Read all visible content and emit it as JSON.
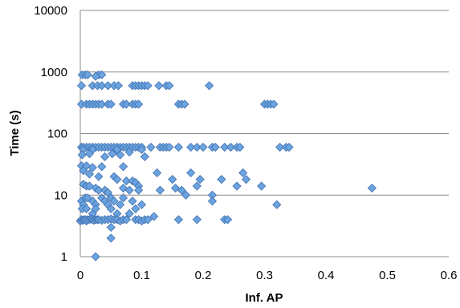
{
  "chart_data": {
    "type": "scatter",
    "title": "",
    "xlabel": "Inf. AP",
    "ylabel": "Time (s)",
    "xlim": [
      0,
      0.6
    ],
    "ylim": [
      1,
      10000
    ],
    "yscale": "log",
    "grid": {
      "horizontal": true,
      "vertical": false
    },
    "legend": "none",
    "x_ticks": [
      "0",
      "0.1",
      "0.2",
      "0.3",
      "0.4",
      "0.5",
      "0.6"
    ],
    "y_ticks": [
      "1",
      "10",
      "100",
      "1000",
      "10000"
    ],
    "marker": "diamond",
    "colors": {
      "marker_fill": "#6aa3df",
      "marker_edge": "#3f6fae",
      "grid": "#8c8c8c"
    },
    "series": [
      {
        "points": [
          [
            0.003,
            900
          ],
          [
            0.008,
            900
          ],
          [
            0.012,
            900
          ],
          [
            0.03,
            900
          ],
          [
            0.035,
            900
          ],
          [
            0.025,
            850
          ],
          [
            0.002,
            600
          ],
          [
            0.02,
            600
          ],
          [
            0.028,
            600
          ],
          [
            0.035,
            600
          ],
          [
            0.045,
            600
          ],
          [
            0.055,
            600
          ],
          [
            0.062,
            600
          ],
          [
            0.085,
            600
          ],
          [
            0.09,
            600
          ],
          [
            0.095,
            600
          ],
          [
            0.1,
            600
          ],
          [
            0.105,
            600
          ],
          [
            0.11,
            600
          ],
          [
            0.128,
            600
          ],
          [
            0.14,
            600
          ],
          [
            0.145,
            600
          ],
          [
            0.21,
            600
          ],
          [
            0.002,
            300
          ],
          [
            0.01,
            300
          ],
          [
            0.015,
            300
          ],
          [
            0.02,
            300
          ],
          [
            0.025,
            300
          ],
          [
            0.03,
            300
          ],
          [
            0.035,
            300
          ],
          [
            0.045,
            300
          ],
          [
            0.05,
            300
          ],
          [
            0.07,
            300
          ],
          [
            0.075,
            300
          ],
          [
            0.085,
            300
          ],
          [
            0.09,
            300
          ],
          [
            0.095,
            300
          ],
          [
            0.16,
            300
          ],
          [
            0.165,
            300
          ],
          [
            0.17,
            300
          ],
          [
            0.3,
            300
          ],
          [
            0.305,
            300
          ],
          [
            0.31,
            300
          ],
          [
            0.315,
            300
          ],
          [
            0.002,
            60
          ],
          [
            0.005,
            60
          ],
          [
            0.01,
            60
          ],
          [
            0.015,
            60
          ],
          [
            0.02,
            60
          ],
          [
            0.025,
            60
          ],
          [
            0.03,
            60
          ],
          [
            0.035,
            60
          ],
          [
            0.04,
            60
          ],
          [
            0.045,
            60
          ],
          [
            0.05,
            60
          ],
          [
            0.055,
            60
          ],
          [
            0.06,
            60
          ],
          [
            0.065,
            60
          ],
          [
            0.07,
            60
          ],
          [
            0.075,
            60
          ],
          [
            0.08,
            60
          ],
          [
            0.085,
            60
          ],
          [
            0.09,
            60
          ],
          [
            0.095,
            60
          ],
          [
            0.1,
            60
          ],
          [
            0.115,
            60
          ],
          [
            0.13,
            60
          ],
          [
            0.135,
            60
          ],
          [
            0.14,
            60
          ],
          [
            0.145,
            60
          ],
          [
            0.16,
            60
          ],
          [
            0.18,
            60
          ],
          [
            0.19,
            60
          ],
          [
            0.2,
            60
          ],
          [
            0.215,
            60
          ],
          [
            0.22,
            60
          ],
          [
            0.235,
            60
          ],
          [
            0.245,
            60
          ],
          [
            0.255,
            60
          ],
          [
            0.26,
            60
          ],
          [
            0.325,
            60
          ],
          [
            0.335,
            60
          ],
          [
            0.34,
            60
          ],
          [
            0.005,
            55
          ],
          [
            0.02,
            55
          ],
          [
            0.06,
            55
          ],
          [
            0.1,
            55
          ],
          [
            0.003,
            45
          ],
          [
            0.015,
            47
          ],
          [
            0.04,
            42
          ],
          [
            0.052,
            47
          ],
          [
            0.065,
            45
          ],
          [
            0.08,
            50
          ],
          [
            0.105,
            42
          ],
          [
            0.002,
            30
          ],
          [
            0.01,
            30
          ],
          [
            0.02,
            28
          ],
          [
            0.035,
            29
          ],
          [
            0.07,
            29
          ],
          [
            0.125,
            23
          ],
          [
            0.18,
            23
          ],
          [
            0.265,
            23
          ],
          [
            0.005,
            25
          ],
          [
            0.015,
            22
          ],
          [
            0.03,
            20
          ],
          [
            0.055,
            20
          ],
          [
            0.06,
            18
          ],
          [
            0.075,
            17
          ],
          [
            0.085,
            17
          ],
          [
            0.09,
            16
          ],
          [
            0.095,
            14
          ],
          [
            0.15,
            18
          ],
          [
            0.195,
            18
          ],
          [
            0.23,
            18
          ],
          [
            0.27,
            18
          ],
          [
            0.255,
            14
          ],
          [
            0.295,
            14
          ],
          [
            0.475,
            13
          ],
          [
            0.005,
            15
          ],
          [
            0.01,
            14
          ],
          [
            0.015,
            14
          ],
          [
            0.025,
            13
          ],
          [
            0.03,
            12
          ],
          [
            0.04,
            12
          ],
          [
            0.045,
            11
          ],
          [
            0.07,
            13
          ],
          [
            0.08,
            12
          ],
          [
            0.095,
            12
          ],
          [
            0.13,
            12
          ],
          [
            0.155,
            13
          ],
          [
            0.165,
            12
          ],
          [
            0.19,
            14
          ],
          [
            0.215,
            10
          ],
          [
            0.172,
            10
          ],
          [
            0.002,
            8
          ],
          [
            0.005,
            7
          ],
          [
            0.008,
            9
          ],
          [
            0.012,
            9
          ],
          [
            0.02,
            8
          ],
          [
            0.025,
            7
          ],
          [
            0.035,
            9
          ],
          [
            0.04,
            8
          ],
          [
            0.045,
            7
          ],
          [
            0.05,
            9
          ],
          [
            0.055,
            8
          ],
          [
            0.065,
            7
          ],
          [
            0.07,
            9
          ],
          [
            0.085,
            8
          ],
          [
            0.1,
            7
          ],
          [
            0.215,
            8
          ],
          [
            0.32,
            7
          ],
          [
            0.003,
            6
          ],
          [
            0.01,
            6
          ],
          [
            0.02,
            5
          ],
          [
            0.025,
            6
          ],
          [
            0.05,
            6
          ],
          [
            0.06,
            5
          ],
          [
            0.08,
            5
          ],
          [
            0.09,
            6
          ],
          [
            0.0,
            3.8
          ],
          [
            0.002,
            4
          ],
          [
            0.004,
            3.9
          ],
          [
            0.006,
            4
          ],
          [
            0.008,
            4
          ],
          [
            0.01,
            3.8
          ],
          [
            0.012,
            4
          ],
          [
            0.015,
            4
          ],
          [
            0.018,
            4.1
          ],
          [
            0.02,
            4
          ],
          [
            0.022,
            3.9
          ],
          [
            0.025,
            4
          ],
          [
            0.028,
            4
          ],
          [
            0.03,
            4
          ],
          [
            0.035,
            3.9
          ],
          [
            0.04,
            4
          ],
          [
            0.045,
            4
          ],
          [
            0.05,
            4.1
          ],
          [
            0.055,
            4
          ],
          [
            0.06,
            4
          ],
          [
            0.065,
            3.8
          ],
          [
            0.07,
            4
          ],
          [
            0.075,
            4
          ],
          [
            0.09,
            4
          ],
          [
            0.095,
            4
          ],
          [
            0.1,
            3.8
          ],
          [
            0.105,
            4
          ],
          [
            0.11,
            4
          ],
          [
            0.12,
            4.5
          ],
          [
            0.16,
            4
          ],
          [
            0.19,
            4
          ],
          [
            0.235,
            4
          ],
          [
            0.24,
            4
          ],
          [
            0.05,
            3
          ],
          [
            0.05,
            2
          ],
          [
            0.025,
            1
          ]
        ]
      }
    ]
  }
}
